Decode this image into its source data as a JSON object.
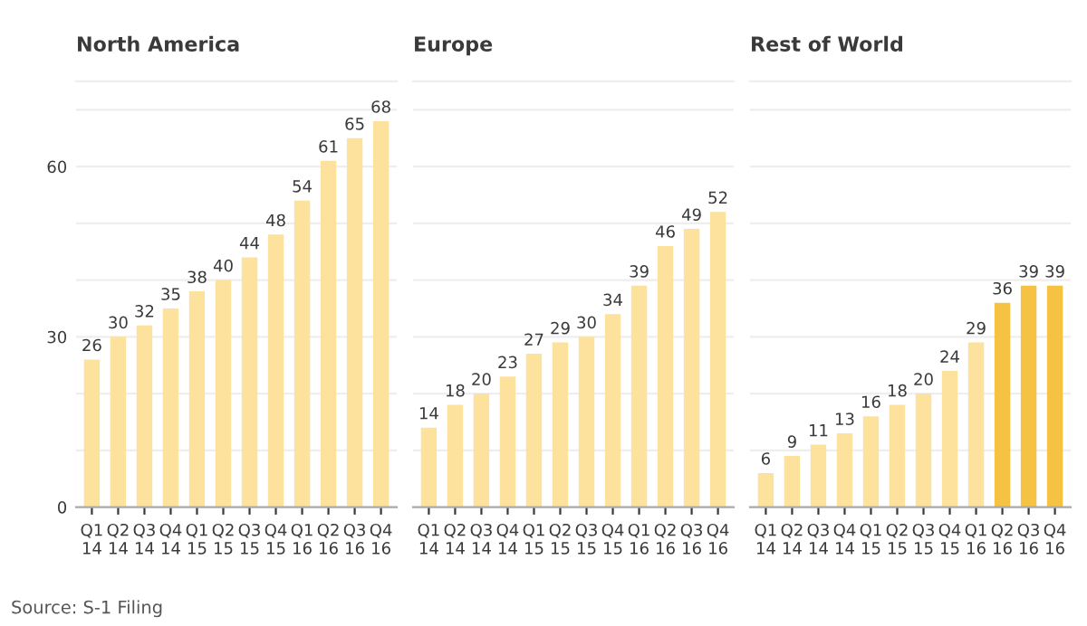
{
  "chart_data": [
    {
      "type": "bar",
      "title": "North America",
      "categories": [
        "Q1\n14",
        "Q2\n14",
        "Q3\n14",
        "Q4\n14",
        "Q1\n15",
        "Q2\n15",
        "Q3\n15",
        "Q4\n15",
        "Q1\n16",
        "Q2\n16",
        "Q3\n16",
        "Q4\n16"
      ],
      "values": [
        26,
        30,
        32,
        35,
        38,
        40,
        44,
        48,
        54,
        61,
        65,
        68
      ],
      "color": "#fde29e",
      "ylim": [
        0,
        75
      ],
      "yticks": [
        0,
        {
          "value": 10,
          "label": null
        },
        {
          "value": 20,
          "label": null
        },
        30,
        {
          "value": 40,
          "label": null
        },
        {
          "value": 50,
          "label": null
        },
        60,
        {
          "value": 70,
          "label": null
        }
      ],
      "grid": "y",
      "data_labels": true,
      "annotations": [
        "Source: S-1 Filing"
      ]
    },
    {
      "type": "bar",
      "title": "Europe",
      "categories": [
        "Q1\n14",
        "Q2\n14",
        "Q3\n14",
        "Q4\n14",
        "Q1\n15",
        "Q2\n15",
        "Q3\n15",
        "Q4\n15",
        "Q1\n16",
        "Q2\n16",
        "Q3\n16",
        "Q4\n16"
      ],
      "values": [
        14,
        18,
        20,
        23,
        27,
        29,
        30,
        34,
        39,
        46,
        49,
        52
      ],
      "color": "#fde29e",
      "ylim": [
        0,
        75
      ],
      "yticks": [
        0,
        {
          "value": 10,
          "label": null
        },
        {
          "value": 20,
          "label": null
        },
        30,
        {
          "value": 40,
          "label": null
        },
        {
          "value": 50,
          "label": null
        },
        60,
        {
          "value": 70,
          "label": null
        }
      ],
      "grid": "y",
      "data_labels": true,
      "tick_labels": "x"
    },
    {
      "type": "bar",
      "title": "Rest of World",
      "categories": [
        "Q1\n14",
        "Q2\n14",
        "Q3\n14",
        "Q4\n14",
        "Q1\n15",
        "Q2\n15",
        "Q3\n15",
        "Q4\n15",
        "Q1\n16",
        "Q2\n16",
        "Q3\n16",
        "Q4\n16"
      ],
      "values": [
        6,
        9,
        11,
        13,
        16,
        18,
        20,
        24,
        29,
        36,
        39,
        39
      ],
      "colors": [
        "#fde29e",
        "#fde29e",
        "#fde29e",
        "#fde29e",
        "#fde29e",
        "#fde29e",
        "#fde29e",
        "#fde29e",
        "#fde29e",
        "#f5c244",
        "#f5c244",
        "#f5c244"
      ],
      "ylim": [
        0,
        75
      ],
      "yticks": [
        0,
        {
          "value": 10,
          "label": null
        },
        {
          "value": 20,
          "label": null
        },
        30,
        {
          "value": 40,
          "label": null
        },
        {
          "value": 50,
          "label": null
        },
        60,
        {
          "value": 70,
          "label": null
        }
      ],
      "grid": "y",
      "data_labels": true,
      "tick_labels": "x"
    }
  ]
}
